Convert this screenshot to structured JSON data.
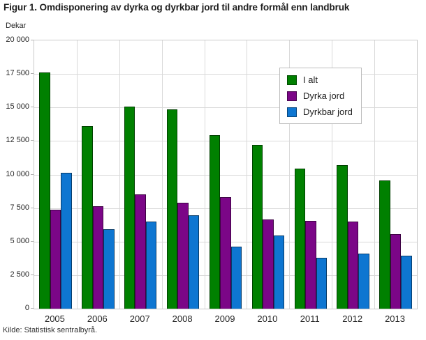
{
  "title": "Figur 1. Omdisponering av dyrka og dyrkbar jord til andre formål enn landbruk",
  "source": "Kilde: Statistisk sentralbyrå.",
  "chart_data": {
    "type": "bar",
    "title": "Figur 1. Omdisponering av dyrka og dyrkbar jord til andre formål enn landbruk",
    "unit_label": "Dekar",
    "xlabel": "",
    "ylabel": "Dekar",
    "categories": [
      "2005",
      "2006",
      "2007",
      "2008",
      "2009",
      "2010",
      "2011",
      "2012",
      "2013"
    ],
    "series": [
      {
        "name": "I alt",
        "color": "#008000",
        "values": [
          17600,
          13600,
          15050,
          14850,
          12950,
          12200,
          10450,
          10700,
          9550
        ]
      },
      {
        "name": "Dyrka jord",
        "color": "#7b0687",
        "values": [
          7400,
          7650,
          8500,
          7900,
          8300,
          6650,
          6550,
          6500,
          5550
        ]
      },
      {
        "name": "Dyrkbar jord",
        "color": "#0e76d1",
        "values": [
          10150,
          5900,
          6500,
          6950,
          4600,
          5450,
          3800,
          4100,
          3950
        ]
      }
    ],
    "ylim": [
      0,
      20000
    ],
    "ytick_step": 2500,
    "ytick_labels": [
      "0",
      "2 500",
      "5 000",
      "7 500",
      "10 000",
      "12 500",
      "15 000",
      "17 500",
      "20 000"
    ],
    "grid": true,
    "grid_color": "#d9d9d9",
    "plot_border_color": "#c9c9c9",
    "legend_position": "top-right"
  }
}
